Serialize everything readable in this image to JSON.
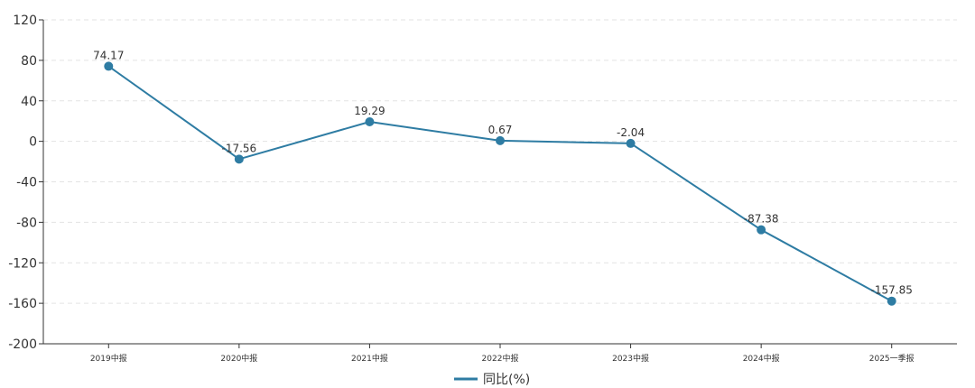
{
  "chart_data": {
    "type": "line",
    "title": "",
    "xlabel": "",
    "ylabel": "",
    "categories": [
      "2019中报",
      "2020中报",
      "2021中报",
      "2022中报",
      "2023中报",
      "2024中报",
      "2025一季报"
    ],
    "series": [
      {
        "name": "同比(%)",
        "values": [
          74.17,
          -17.56,
          19.29,
          0.67,
          -2.04,
          -87.38,
          -157.85
        ],
        "labels": [
          "74.17",
          "-17.56",
          "19.29",
          "0.67",
          "-2.04",
          "-87.38",
          "-157.85"
        ],
        "color": "#2e7ca3"
      }
    ],
    "ylim": [
      -200,
      120
    ],
    "yticks": [
      120,
      80,
      40,
      0,
      -40,
      -80,
      -120,
      -160,
      -200
    ],
    "grid": "horizontal-dashed",
    "legend": "bottom-center"
  }
}
